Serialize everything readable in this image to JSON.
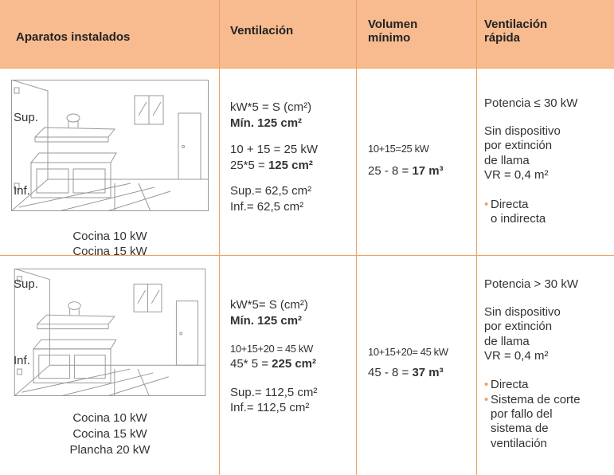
{
  "header": {
    "cells": [
      "Aparatos instalados",
      "Ventilación",
      "Volumen mínimo",
      "Ventilación rápida"
    ]
  },
  "rows": [
    {
      "illustration": {
        "upper_label": "Sup.",
        "lower_label": "Inf."
      },
      "appliances": [
        "Cocina 10 kW",
        "Cocina 15 kW"
      ],
      "ventilation": {
        "formula": "kW*5 = S (cm²)",
        "minimum": "Mín. 125 cm²",
        "sum": "10 + 15 = 25 kW",
        "calc_prefix": "25*5 = ",
        "calc_result": "125 cm²",
        "upper": "Sup.= 62,5 cm²",
        "lower": "Inf.= 62,5 cm²"
      },
      "volume": {
        "sum": "10+15=25 kW",
        "calc_prefix": "25 - 8 = ",
        "calc_result": "17 m³"
      },
      "rapid": {
        "power": "Potencia ≤ 30 kW",
        "description": [
          "Sin dispositivo",
          "por extinción",
          "de llama"
        ],
        "vr": "VR = 0,4 m²",
        "bullets": [
          [
            "Directa",
            "o indirecta"
          ]
        ]
      }
    },
    {
      "illustration": {
        "upper_label": "Sup.",
        "lower_label": "Inf."
      },
      "appliances": [
        "Cocina 10 kW",
        "Cocina 15 kW",
        "Plancha 20 kW"
      ],
      "ventilation": {
        "formula": "kW*5= S (cm²)",
        "minimum": "Mín. 125 cm²",
        "sum": "10+15+20 = 45 kW",
        "calc_prefix": "45* 5 = ",
        "calc_result": "225 cm²",
        "upper": "Sup.= 112,5 cm²",
        "lower": "Inf.= 112,5 cm²"
      },
      "volume": {
        "sum": "10+15+20= 45 kW",
        "calc_prefix": "45 - 8 = ",
        "calc_result": "37 m³"
      },
      "rapid": {
        "power": "Potencia > 30 kW",
        "description": [
          "Sin dispositivo",
          "por extinción",
          "de llama"
        ],
        "vr": "VR = 0,4 m²",
        "bullets": [
          [
            "Directa"
          ],
          [
            "Sistema de corte",
            "por fallo del",
            "sistema de",
            "ventilación"
          ]
        ]
      }
    }
  ]
}
